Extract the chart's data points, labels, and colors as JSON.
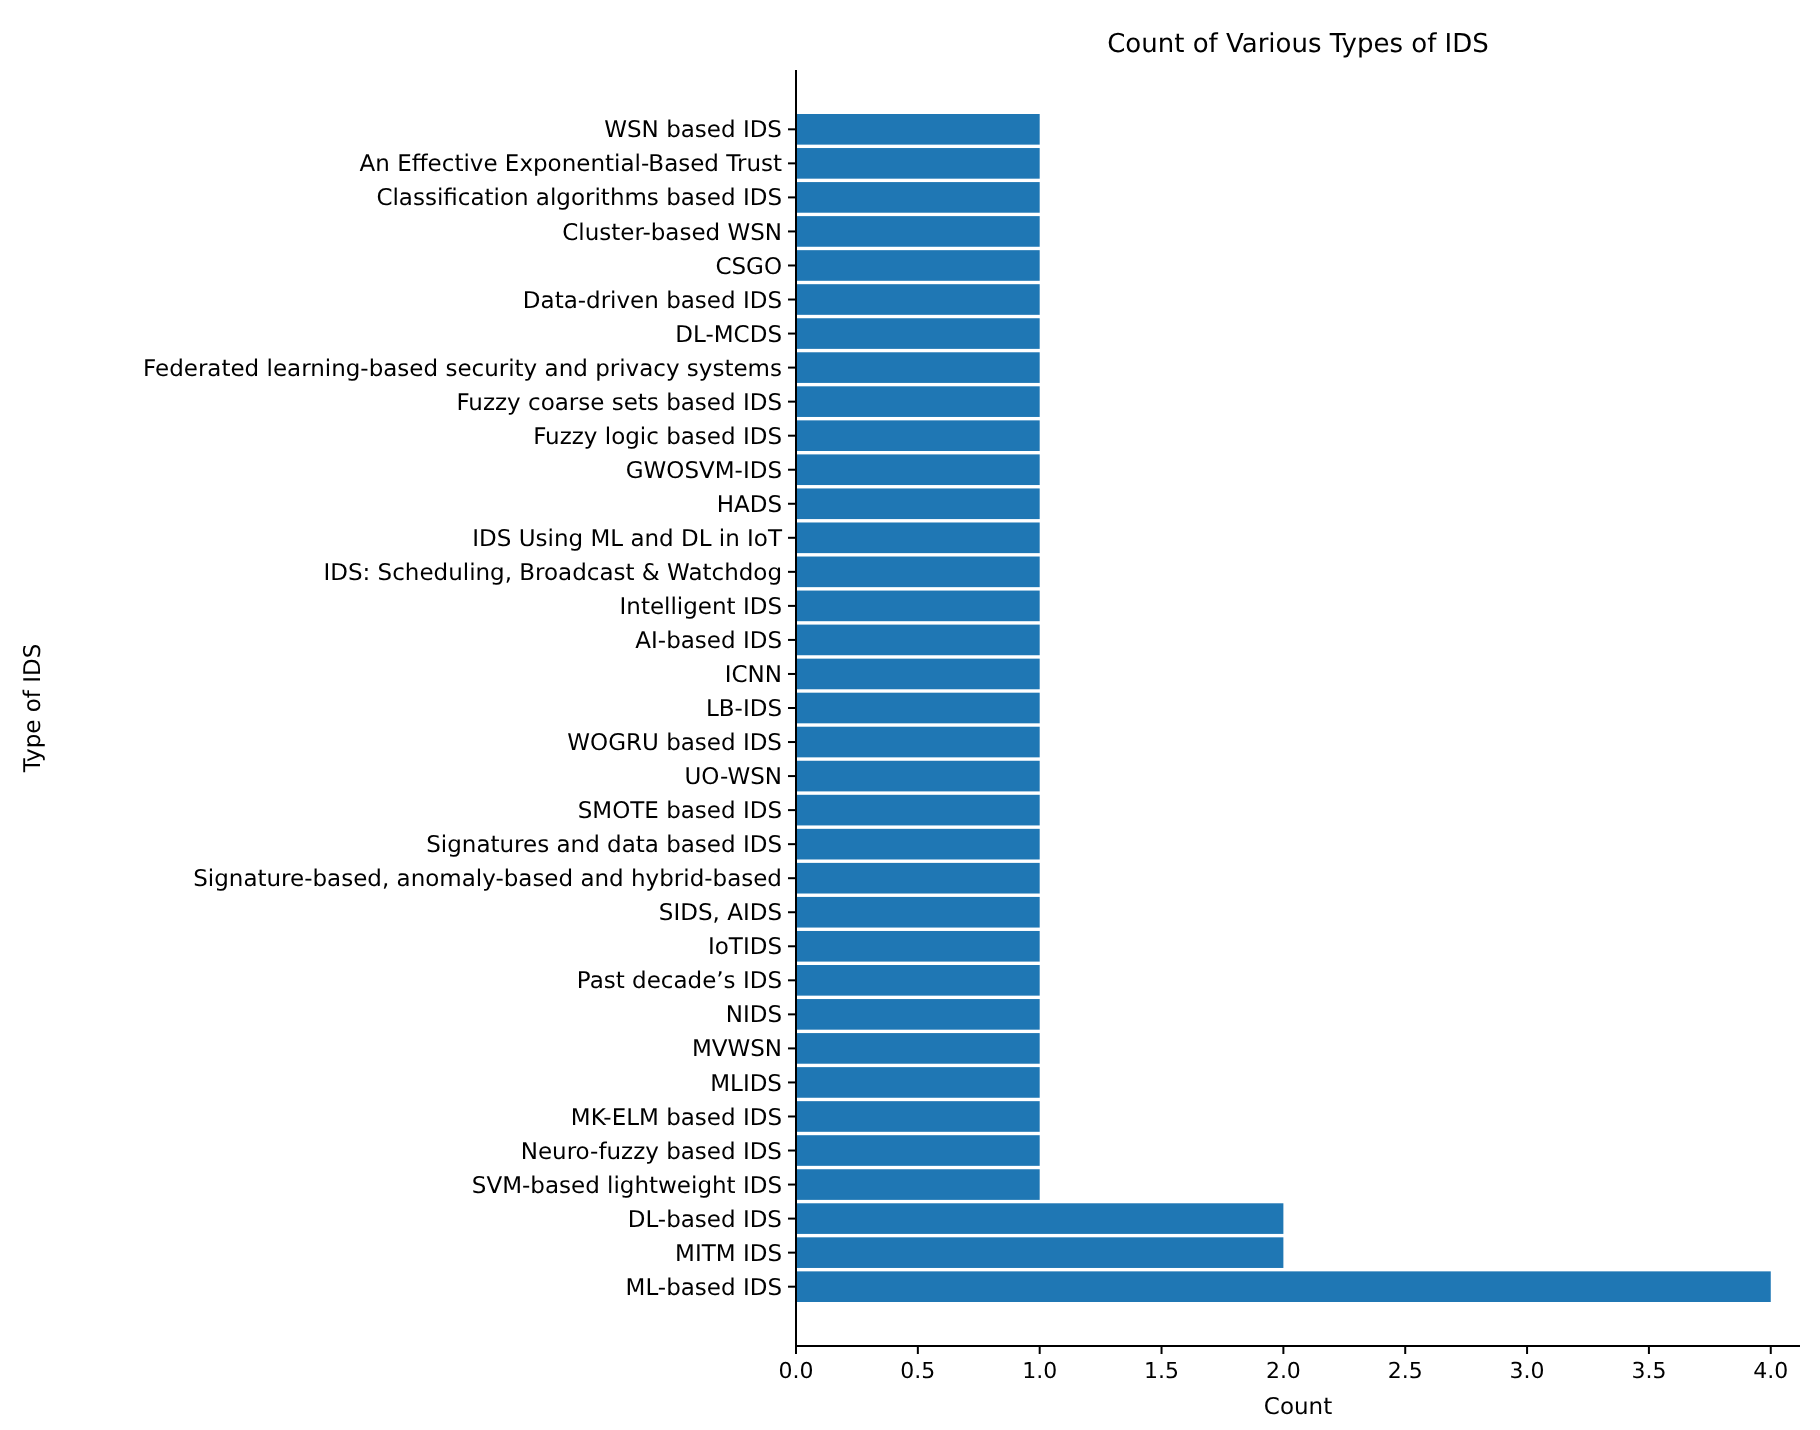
{
  "chart_data": {
    "type": "bar",
    "orientation": "horizontal",
    "title": "Count of Various Types of IDS",
    "xlabel": "Count",
    "ylabel": "Type of IDS",
    "categories": [
      "WSN based IDS",
      "An Effective Exponential-Based Trust",
      "Classification algorithms based IDS",
      "Cluster-based WSN",
      "CSGO",
      "Data-driven based IDS",
      "DL-MCDS",
      "Federated learning-based security and privacy systems",
      "Fuzzy coarse sets based IDS",
      "Fuzzy logic based IDS",
      "GWOSVM-IDS",
      "HADS",
      "IDS Using ML and DL in IoT",
      "IDS: Scheduling, Broadcast & Watchdog",
      "Intelligent IDS",
      "AI-based IDS",
      "ICNN",
      "LB-IDS",
      "WOGRU based IDS",
      "UO-WSN",
      "SMOTE based IDS",
      "Signatures and data based IDS",
      "Signature-based, anomaly-based and hybrid-based",
      "SIDS, AIDS",
      "IoTIDS",
      "Past decade’s IDS",
      "NIDS",
      "MVWSN",
      "MLIDS",
      "MK-ELM based IDS",
      "Neuro-fuzzy based IDS",
      "SVM-based lightweight IDS",
      "DL-based IDS",
      "MITM IDS",
      "ML-based IDS"
    ],
    "values": [
      1,
      1,
      1,
      1,
      1,
      1,
      1,
      1,
      1,
      1,
      1,
      1,
      1,
      1,
      1,
      1,
      1,
      1,
      1,
      1,
      1,
      1,
      1,
      1,
      1,
      1,
      1,
      1,
      1,
      1,
      1,
      1,
      2,
      2,
      4
    ],
    "color": "#1f77b4",
    "xlim": [
      0,
      4.12
    ],
    "xticks": [
      {
        "value": 0,
        "label": "0.0"
      },
      {
        "value": 0.5,
        "label": "0.5"
      },
      {
        "value": 1,
        "label": "1.0"
      },
      {
        "value": 1.5,
        "label": "1.5"
      },
      {
        "value": 2,
        "label": "2.0"
      },
      {
        "value": 2.5,
        "label": "2.5"
      },
      {
        "value": 3,
        "label": "3.0"
      },
      {
        "value": 3.5,
        "label": "3.5"
      },
      {
        "value": 4,
        "label": "4.0"
      }
    ],
    "grid": false
  }
}
